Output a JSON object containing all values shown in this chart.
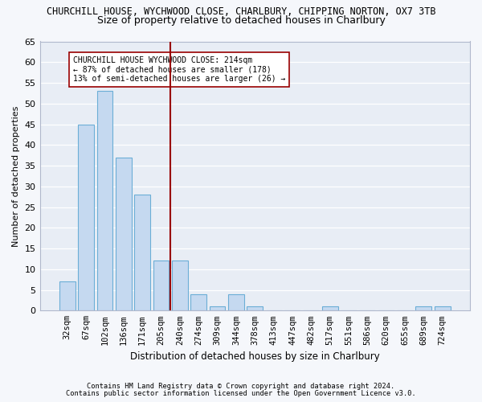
{
  "title": "CHURCHILL HOUSE, WYCHWOOD CLOSE, CHARLBURY, CHIPPING NORTON, OX7 3TB",
  "subtitle": "Size of property relative to detached houses in Charlbury",
  "xlabel": "Distribution of detached houses by size in Charlbury",
  "ylabel": "Number of detached properties",
  "bar_labels": [
    "32sqm",
    "67sqm",
    "102sqm",
    "136sqm",
    "171sqm",
    "205sqm",
    "240sqm",
    "274sqm",
    "309sqm",
    "344sqm",
    "378sqm",
    "413sqm",
    "447sqm",
    "482sqm",
    "517sqm",
    "551sqm",
    "586sqm",
    "620sqm",
    "655sqm",
    "689sqm",
    "724sqm"
  ],
  "bar_values": [
    7,
    45,
    53,
    37,
    28,
    12,
    12,
    4,
    1,
    4,
    1,
    0,
    0,
    0,
    1,
    0,
    0,
    0,
    0,
    1,
    1
  ],
  "bar_color": "#c5d9f0",
  "bar_edge_color": "#6baed6",
  "vline_pos": 5.5,
  "annotation_text": "CHURCHILL HOUSE WYCHWOOD CLOSE: 214sqm\n← 87% of detached houses are smaller (178)\n13% of semi-detached houses are larger (26) →",
  "ylim": [
    0,
    65
  ],
  "yticks": [
    0,
    5,
    10,
    15,
    20,
    25,
    30,
    35,
    40,
    45,
    50,
    55,
    60,
    65
  ],
  "footnote1": "Contains HM Land Registry data © Crown copyright and database right 2024.",
  "footnote2": "Contains public sector information licensed under the Open Government Licence v3.0.",
  "fig_bg_color": "#f5f7fb",
  "plot_bg_color": "#e8edf5",
  "title_fontsize": 8.5,
  "subtitle_fontsize": 9.0,
  "xlabel_fontsize": 8.5,
  "ylabel_fontsize": 8.0,
  "tick_fontsize": 7.5,
  "annot_fontsize": 7.0,
  "footnote_fontsize": 6.2
}
